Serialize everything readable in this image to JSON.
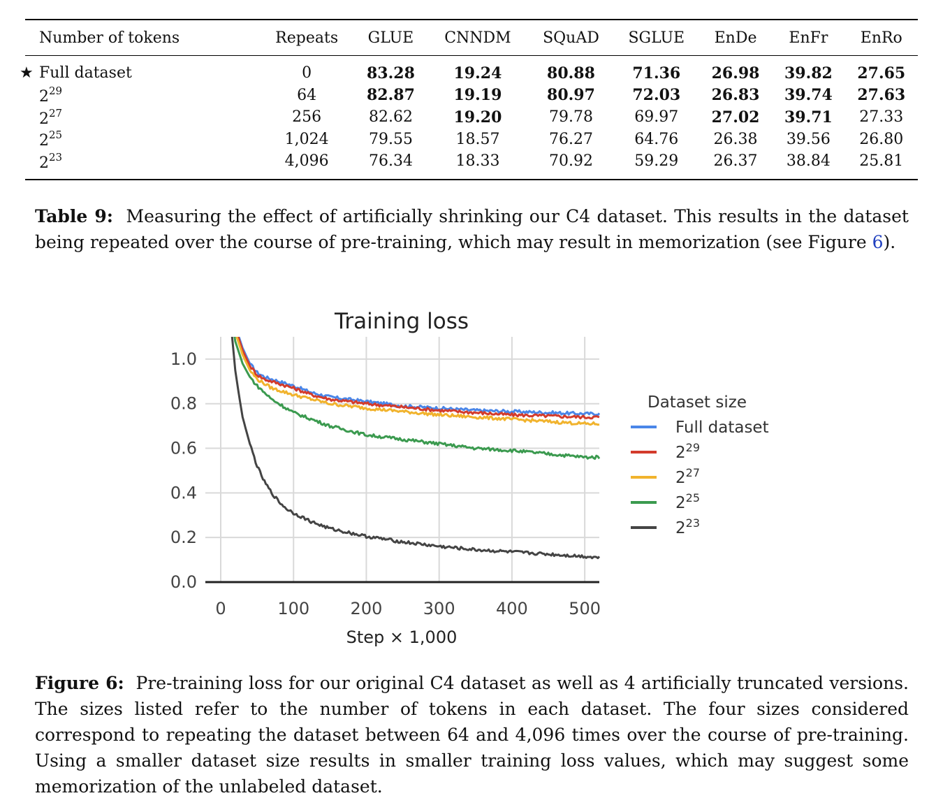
{
  "table": {
    "headers": [
      "Number of tokens",
      "Repeats",
      "GLUE",
      "CNNDM",
      "SQuAD",
      "SGLUE",
      "EnDe",
      "EnFr",
      "EnRo"
    ],
    "rows": [
      {
        "star": "★",
        "base": "Full dataset",
        "exp": "",
        "repeats": "0",
        "cells": [
          {
            "v": "83.28",
            "bold": true
          },
          {
            "v": "19.24",
            "bold": true
          },
          {
            "v": "80.88",
            "bold": true
          },
          {
            "v": "71.36",
            "bold": true
          },
          {
            "v": "26.98",
            "bold": true
          },
          {
            "v": "39.82",
            "bold": true
          },
          {
            "v": "27.65",
            "bold": true
          }
        ]
      },
      {
        "star": "",
        "base": "2",
        "exp": "29",
        "repeats": "64",
        "cells": [
          {
            "v": "82.87",
            "bold": true
          },
          {
            "v": "19.19",
            "bold": true
          },
          {
            "v": "80.97",
            "bold": true
          },
          {
            "v": "72.03",
            "bold": true
          },
          {
            "v": "26.83",
            "bold": true
          },
          {
            "v": "39.74",
            "bold": true
          },
          {
            "v": "27.63",
            "bold": true
          }
        ]
      },
      {
        "star": "",
        "base": "2",
        "exp": "27",
        "repeats": "256",
        "cells": [
          {
            "v": "82.62",
            "bold": false
          },
          {
            "v": "19.20",
            "bold": true
          },
          {
            "v": "79.78",
            "bold": false
          },
          {
            "v": "69.97",
            "bold": false
          },
          {
            "v": "27.02",
            "bold": true
          },
          {
            "v": "39.71",
            "bold": true
          },
          {
            "v": "27.33",
            "bold": false
          }
        ]
      },
      {
        "star": "",
        "base": "2",
        "exp": "25",
        "repeats": "1,024",
        "cells": [
          {
            "v": "79.55",
            "bold": false
          },
          {
            "v": "18.57",
            "bold": false
          },
          {
            "v": "76.27",
            "bold": false
          },
          {
            "v": "64.76",
            "bold": false
          },
          {
            "v": "26.38",
            "bold": false
          },
          {
            "v": "39.56",
            "bold": false
          },
          {
            "v": "26.80",
            "bold": false
          }
        ]
      },
      {
        "star": "",
        "base": "2",
        "exp": "23",
        "repeats": "4,096",
        "cells": [
          {
            "v": "76.34",
            "bold": false
          },
          {
            "v": "18.33",
            "bold": false
          },
          {
            "v": "70.92",
            "bold": false
          },
          {
            "v": "59.29",
            "bold": false
          },
          {
            "v": "26.37",
            "bold": false
          },
          {
            "v": "38.84",
            "bold": false
          },
          {
            "v": "25.81",
            "bold": false
          }
        ]
      }
    ]
  },
  "table_caption": {
    "label": "Table 9:",
    "text_before_ref": "Measuring the effect of artificially shrinking our C4 dataset. This results in the dataset being repeated over the course of pre-training, which may result in memorization (see Figure ",
    "ref": "6",
    "text_after_ref": ")."
  },
  "figure_caption": {
    "label": "Figure 6:",
    "text": "Pre-training loss for our original C4 dataset as well as 4 artificially truncated versions. The sizes listed refer to the number of tokens in each dataset. The four sizes considered correspond to repeating the dataset between 64 and 4,096 times over the course of pre-training. Using a smaller dataset size results in smaller training loss values, which may suggest some memorization of the unlabeled dataset."
  },
  "chart_data": {
    "type": "line",
    "title": "Training loss",
    "xlabel": "Step × 1,000",
    "ylabel": "",
    "xlim": [
      0,
      520
    ],
    "ylim": [
      0,
      1.1
    ],
    "x_ticks": [
      "0",
      "100",
      "200",
      "300",
      "400",
      "500"
    ],
    "y_ticks": [
      "0.0",
      "0.2",
      "0.4",
      "0.6",
      "0.8",
      "1.0"
    ],
    "grid": true,
    "legend_title": "Dataset size",
    "legend_position": "right",
    "series": [
      {
        "name": "Full dataset",
        "base": "Full dataset",
        "exp": "",
        "color": "#4a86e8",
        "x": [
          10,
          20,
          30,
          40,
          50,
          60,
          70,
          80,
          100,
          125,
          150,
          200,
          250,
          300,
          350,
          400,
          450,
          500,
          520
        ],
        "y": [
          1.3,
          1.15,
          1.05,
          0.98,
          0.94,
          0.92,
          0.91,
          0.9,
          0.88,
          0.85,
          0.83,
          0.81,
          0.79,
          0.78,
          0.77,
          0.765,
          0.76,
          0.755,
          0.755
        ]
      },
      {
        "name": "2^29",
        "base": "2",
        "exp": "29",
        "color": "#d33b2c",
        "x": [
          10,
          20,
          30,
          40,
          50,
          60,
          70,
          80,
          100,
          125,
          150,
          200,
          250,
          300,
          350,
          400,
          450,
          500,
          520
        ],
        "y": [
          1.3,
          1.14,
          1.04,
          0.97,
          0.93,
          0.91,
          0.9,
          0.89,
          0.87,
          0.84,
          0.82,
          0.8,
          0.785,
          0.77,
          0.76,
          0.75,
          0.745,
          0.74,
          0.74
        ]
      },
      {
        "name": "2^27",
        "base": "2",
        "exp": "27",
        "color": "#f1b32d",
        "x": [
          10,
          20,
          30,
          40,
          50,
          60,
          70,
          80,
          100,
          125,
          150,
          200,
          250,
          300,
          350,
          400,
          450,
          500,
          520
        ],
        "y": [
          1.3,
          1.12,
          1.02,
          0.95,
          0.91,
          0.89,
          0.87,
          0.86,
          0.84,
          0.82,
          0.8,
          0.78,
          0.765,
          0.75,
          0.74,
          0.73,
          0.72,
          0.71,
          0.71
        ]
      },
      {
        "name": "2^25",
        "base": "2",
        "exp": "25",
        "color": "#3b9a4f",
        "x": [
          10,
          20,
          30,
          40,
          50,
          60,
          70,
          80,
          100,
          125,
          150,
          200,
          250,
          300,
          350,
          400,
          450,
          500,
          520
        ],
        "y": [
          1.3,
          1.08,
          0.98,
          0.92,
          0.88,
          0.85,
          0.82,
          0.8,
          0.76,
          0.73,
          0.7,
          0.66,
          0.64,
          0.62,
          0.6,
          0.59,
          0.575,
          0.56,
          0.56
        ]
      },
      {
        "name": "2^23",
        "base": "2",
        "exp": "23",
        "color": "#444444",
        "x": [
          10,
          15,
          20,
          25,
          30,
          40,
          50,
          60,
          70,
          80,
          90,
          100,
          125,
          150,
          200,
          250,
          300,
          350,
          400,
          450,
          500,
          520
        ],
        "y": [
          1.3,
          1.12,
          0.95,
          0.84,
          0.74,
          0.62,
          0.52,
          0.45,
          0.4,
          0.36,
          0.33,
          0.31,
          0.27,
          0.24,
          0.205,
          0.18,
          0.16,
          0.145,
          0.135,
          0.125,
          0.115,
          0.11
        ]
      }
    ]
  }
}
